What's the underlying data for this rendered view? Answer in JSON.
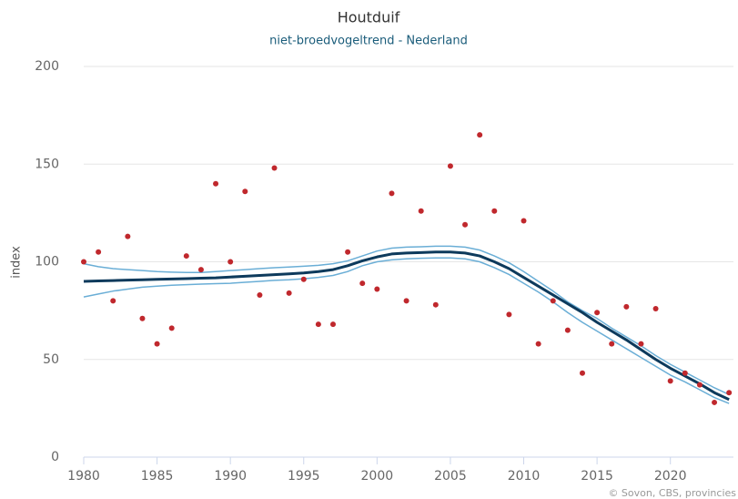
{
  "chart_data": {
    "type": "line",
    "title": "Houtduif",
    "subtitle": "niet-broedvogeltrend - Nederland",
    "y_label": "index",
    "credits": "© Sovon, CBS, provincies",
    "x": [
      1980,
      1981,
      1982,
      1983,
      1984,
      1985,
      1986,
      1987,
      1988,
      1989,
      1990,
      1991,
      1992,
      1993,
      1994,
      1995,
      1996,
      1997,
      1998,
      1999,
      2000,
      2001,
      2002,
      2003,
      2004,
      2005,
      2006,
      2007,
      2008,
      2009,
      2010,
      2011,
      2012,
      2013,
      2014,
      2015,
      2016,
      2017,
      2018,
      2019,
      2020,
      2021,
      2022,
      2023,
      2024
    ],
    "xlim": [
      1980,
      2024.3
    ],
    "xticks": [
      1980,
      1985,
      1990,
      1995,
      2000,
      2005,
      2010,
      2015,
      2020
    ],
    "ylim": [
      0,
      200
    ],
    "yticks": [
      0,
      50,
      100,
      150,
      200
    ],
    "grid": true,
    "series": [
      {
        "color": "#6aaed6",
        "style": "line",
        "values": [
          99,
          97.5,
          96.5,
          96,
          95.5,
          95,
          94.7,
          94.5,
          94.5,
          95,
          95.5,
          96,
          96.5,
          97,
          97.3,
          97.7,
          98.2,
          99,
          100.5,
          103,
          105.5,
          107,
          107.5,
          107.7,
          108,
          108,
          107.5,
          106,
          103,
          99.5,
          95,
          90,
          85,
          79.5,
          75,
          71,
          66,
          61.5,
          57,
          52,
          47.5,
          43.5,
          39.5,
          35.5,
          32
        ]
      },
      {
        "color": "#6aaed6",
        "style": "line",
        "values": [
          82,
          83.5,
          85,
          86,
          87,
          87.5,
          88,
          88.3,
          88.6,
          88.8,
          89,
          89.5,
          90,
          90.5,
          90.8,
          91.3,
          92,
          93,
          95,
          98,
          100,
          101,
          101.5,
          101.8,
          102,
          102,
          101.5,
          100,
          97,
          93.5,
          89,
          84.5,
          79.5,
          74,
          69,
          64.5,
          60,
          55.5,
          51,
          46.5,
          42,
          38.5,
          34.5,
          30.5,
          27.5
        ]
      },
      {
        "color": "#0d3a5c",
        "style": "line",
        "values": [
          90,
          90.2,
          90.4,
          90.6,
          90.8,
          91,
          91.2,
          91.4,
          91.6,
          91.8,
          92.2,
          92.6,
          93,
          93.4,
          93.8,
          94.3,
          95,
          96,
          98,
          100.5,
          102.5,
          104,
          104.5,
          104.7,
          105,
          105,
          104.5,
          103,
          100,
          96.5,
          92,
          87.5,
          83,
          78.5,
          74,
          69,
          64.5,
          60,
          55,
          50,
          45.5,
          41.5,
          37.5,
          33,
          29.5
        ]
      },
      {
        "color": "#c0282d",
        "style": "points",
        "values": [
          100,
          105,
          80,
          113,
          71,
          58,
          66,
          103,
          96,
          140,
          100,
          136,
          83,
          148,
          84,
          91,
          68,
          68,
          105,
          89,
          86,
          135,
          80,
          126,
          78,
          149,
          119,
          165,
          126,
          73,
          121,
          58,
          80,
          65,
          43,
          74,
          58,
          77,
          58,
          76,
          39,
          43,
          37,
          28,
          33
        ]
      }
    ]
  }
}
